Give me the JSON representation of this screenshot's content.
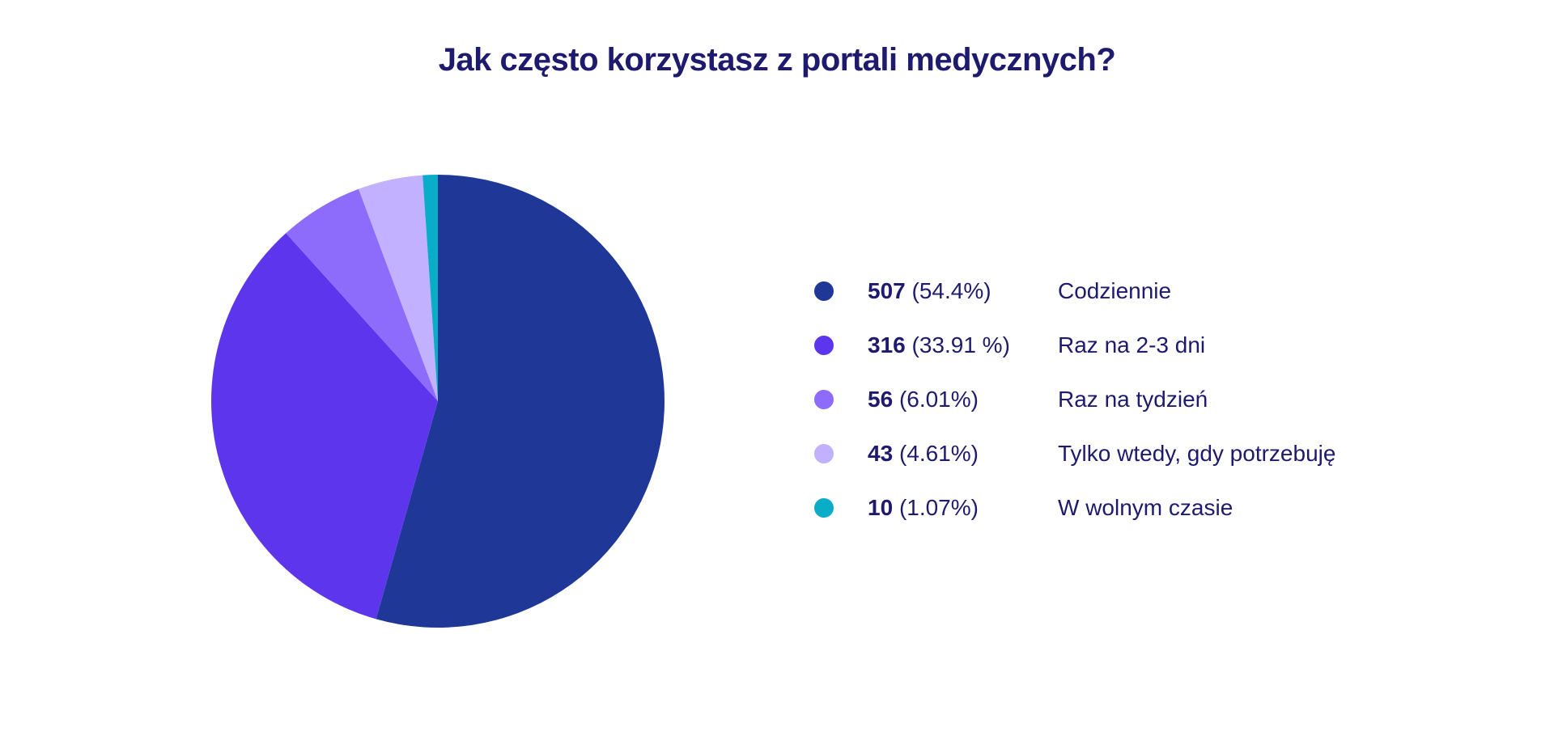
{
  "title": "Jak często korzystasz z portali medycznych?",
  "legend": [
    {
      "count": "507",
      "percent": "(54.4%)",
      "label": "Codziennie",
      "color": "#1f3796"
    },
    {
      "count": "316",
      "percent": "(33.91 %)",
      "label": "Raz na 2-3 dni",
      "color": "#5c35ec"
    },
    {
      "count": "56",
      "percent": "(6.01%)",
      "label": "Raz na tydzień",
      "color": "#8d6cfc"
    },
    {
      "count": "43",
      "percent": "(4.61%)",
      "label": "Tylko wtedy, gdy potrzebuję",
      "color": "#c1b1fe"
    },
    {
      "count": "10",
      "percent": "(1.07%)",
      "label": "W wolnym czasie",
      "color": "#0aadc7"
    }
  ],
  "chart_data": {
    "type": "pie",
    "title": "Jak często korzystasz z portali medycznych?",
    "categories": [
      "Codziennie",
      "Raz na 2-3 dni",
      "Raz na tydzień",
      "Tylko wtedy, gdy potrzebuję",
      "W wolnym czasie"
    ],
    "values": [
      507,
      316,
      56,
      43,
      10
    ],
    "percentages": [
      54.4,
      33.91,
      6.01,
      4.61,
      1.07
    ],
    "colors": [
      "#1f3796",
      "#5c35ec",
      "#8d6cfc",
      "#c1b1fe",
      "#0aadc7"
    ],
    "start_angle_deg": 0,
    "direction": "clockwise",
    "legend_position": "right"
  }
}
